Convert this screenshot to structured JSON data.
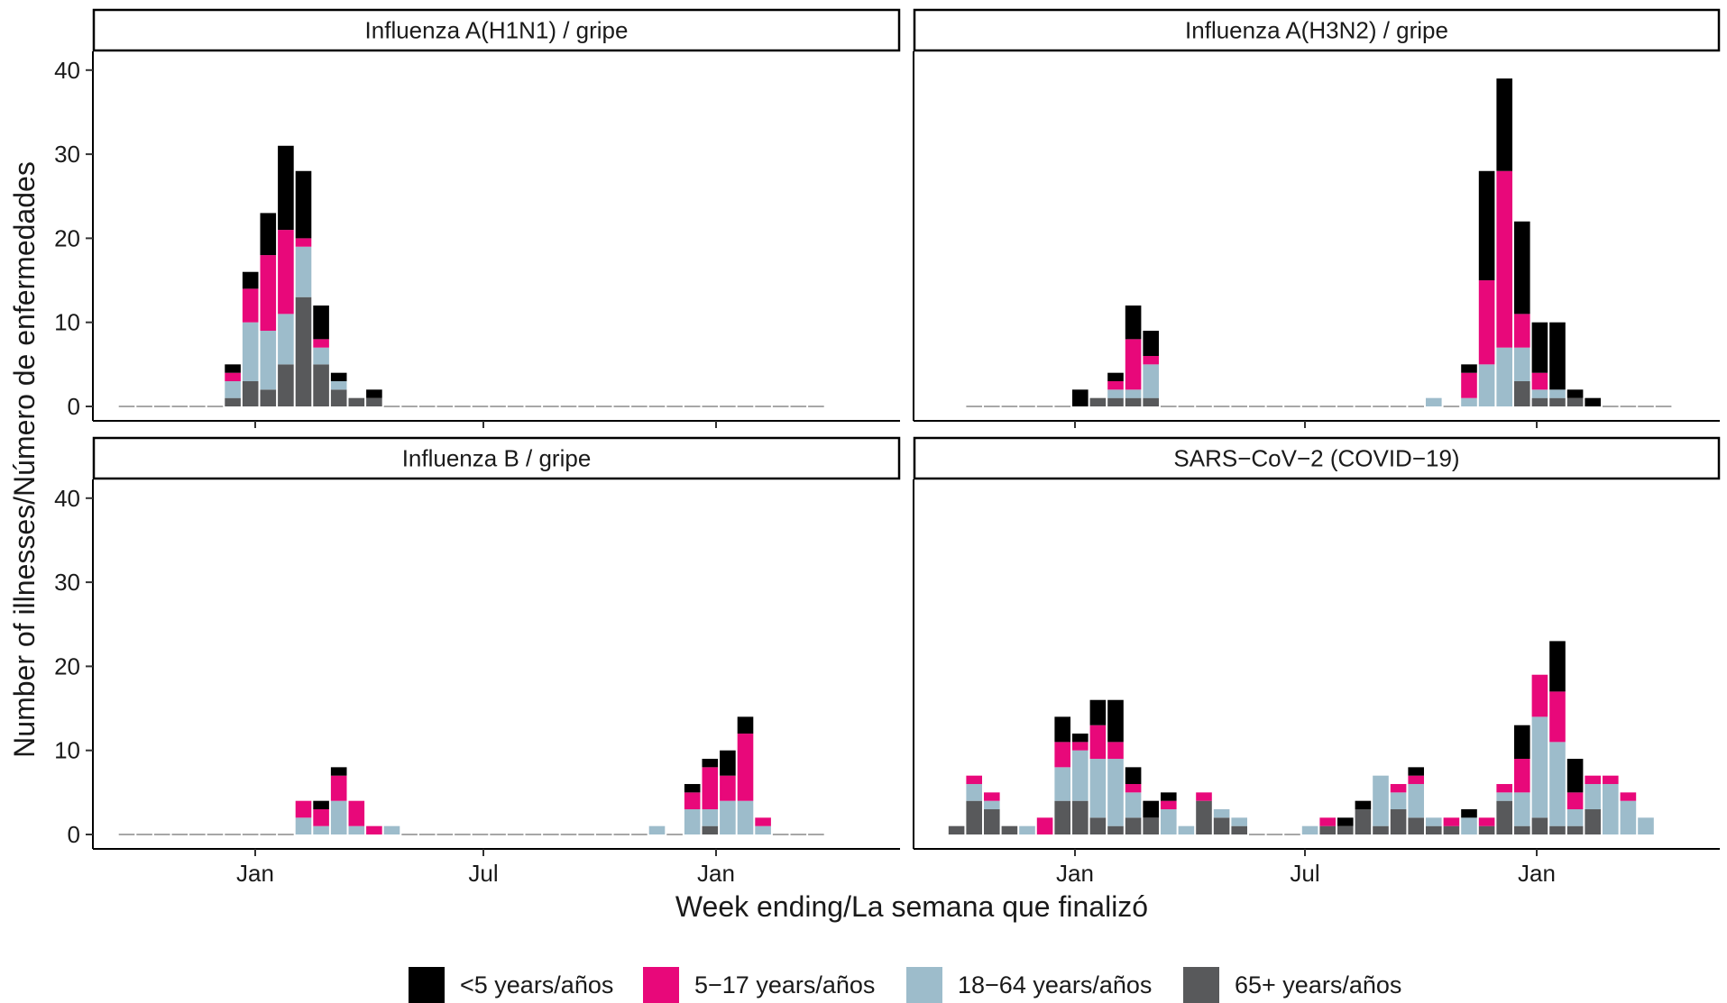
{
  "figure": {
    "ylabel": "Number of illnesses/Número de enfermedades",
    "xlabel": "Week ending/La semana que finalizó",
    "x_tick_labels": [
      "Jan",
      "Jul",
      "Jan"
    ],
    "y_tick_labels": [
      "0",
      "10",
      "20",
      "30",
      "40"
    ]
  },
  "legend": {
    "items": [
      {
        "label": "<5 years/años",
        "color": "#000000"
      },
      {
        "label": "5−17 years/años",
        "color": "#e8087a"
      },
      {
        "label": "18−64 years/años",
        "color": "#9dbccb"
      },
      {
        "label": "65+ years/años",
        "color": "#58595b"
      }
    ]
  },
  "chart_data": [
    {
      "type": "bar",
      "stacked": true,
      "title": "Influenza A(H1N1) / gripe",
      "ylim": [
        0,
        40
      ],
      "x_week_index": [
        2,
        3,
        4,
        5,
        6,
        7,
        8,
        9,
        10,
        11,
        12,
        13,
        14,
        15,
        16,
        17,
        18,
        19,
        20,
        21,
        22,
        23,
        24,
        25,
        26,
        27,
        28,
        29,
        30,
        31,
        32,
        33,
        34,
        35,
        36,
        37,
        38,
        39,
        40,
        41
      ],
      "series": [
        {
          "name": "65+ years/años",
          "values": [
            0,
            0,
            0,
            0,
            0,
            0,
            1,
            3,
            2,
            5,
            13,
            5,
            2,
            1,
            1,
            0,
            0,
            0,
            0,
            0,
            0,
            0,
            0,
            0,
            0,
            0,
            0,
            0,
            0,
            0,
            0,
            0,
            0,
            0,
            0,
            0,
            0,
            0,
            0,
            0
          ]
        },
        {
          "name": "18−64 years/años",
          "values": [
            0,
            0,
            0,
            0,
            0,
            0,
            2,
            7,
            7,
            6,
            6,
            2,
            1,
            0,
            0,
            0,
            0,
            0,
            0,
            0,
            0,
            0,
            0,
            0,
            0,
            0,
            0,
            0,
            0,
            0,
            0,
            0,
            0,
            0,
            0,
            0,
            0,
            0,
            0,
            0
          ]
        },
        {
          "name": "5−17 years/años",
          "values": [
            0,
            0,
            0,
            0,
            0,
            0,
            1,
            4,
            9,
            10,
            1,
            1,
            0,
            0,
            0,
            0,
            0,
            0,
            0,
            0,
            0,
            0,
            0,
            0,
            0,
            0,
            0,
            0,
            0,
            0,
            0,
            0,
            0,
            0,
            0,
            0,
            0,
            0,
            0,
            0
          ]
        },
        {
          "name": "<5 years/años",
          "values": [
            0,
            0,
            0,
            0,
            0,
            0,
            1,
            2,
            5,
            10,
            8,
            4,
            1,
            0,
            1,
            0,
            0,
            0,
            0,
            0,
            0,
            0,
            0,
            0,
            0,
            0,
            0,
            0,
            0,
            0,
            0,
            0,
            0,
            0,
            0,
            0,
            0,
            0,
            0,
            0
          ]
        }
      ]
    },
    {
      "type": "bar",
      "stacked": true,
      "title": "Influenza A(H3N2) / gripe",
      "ylim": [
        0,
        40
      ],
      "x_week_index": [
        2,
        3,
        4,
        5,
        6,
        7,
        8,
        9,
        10,
        11,
        12,
        13,
        14,
        15,
        16,
        17,
        18,
        19,
        20,
        21,
        22,
        23,
        24,
        25,
        26,
        27,
        28,
        29,
        30,
        31,
        32,
        33,
        34,
        35,
        36,
        37,
        38,
        39,
        40,
        41
      ],
      "series": [
        {
          "name": "65+ years/años",
          "values": [
            0,
            0,
            0,
            0,
            0,
            0,
            0,
            1,
            1,
            1,
            1,
            0,
            0,
            0,
            0,
            0,
            0,
            0,
            0,
            0,
            0,
            0,
            0,
            0,
            0,
            0,
            0,
            0,
            0,
            0,
            0,
            3,
            1,
            1,
            1,
            0,
            0,
            0,
            0,
            0
          ]
        },
        {
          "name": "18−64 years/años",
          "values": [
            0,
            0,
            0,
            0,
            0,
            0,
            0,
            0,
            1,
            1,
            4,
            0,
            0,
            0,
            0,
            0,
            0,
            0,
            0,
            0,
            0,
            0,
            0,
            0,
            0,
            0,
            1,
            0,
            1,
            5,
            7,
            4,
            1,
            1,
            0,
            0,
            0,
            0,
            0,
            0
          ]
        },
        {
          "name": "5−17 years/años",
          "values": [
            0,
            0,
            0,
            0,
            0,
            0,
            0,
            0,
            1,
            6,
            1,
            0,
            0,
            0,
            0,
            0,
            0,
            0,
            0,
            0,
            0,
            0,
            0,
            0,
            0,
            0,
            0,
            0,
            3,
            10,
            21,
            4,
            2,
            0,
            0,
            0,
            0,
            0,
            0,
            0
          ]
        },
        {
          "name": "<5 years/años",
          "values": [
            0,
            0,
            0,
            0,
            0,
            0,
            2,
            0,
            1,
            4,
            3,
            0,
            0,
            0,
            0,
            0,
            0,
            0,
            0,
            0,
            0,
            0,
            0,
            0,
            0,
            0,
            0,
            0,
            1,
            13,
            11,
            11,
            6,
            8,
            1,
            1,
            0,
            0,
            0,
            0
          ]
        }
      ]
    },
    {
      "type": "bar",
      "stacked": true,
      "title": "Influenza B / gripe",
      "ylim": [
        0,
        40
      ],
      "x_week_index": [
        2,
        3,
        4,
        5,
        6,
        7,
        8,
        9,
        10,
        11,
        12,
        13,
        14,
        15,
        16,
        17,
        18,
        19,
        20,
        21,
        22,
        23,
        24,
        25,
        26,
        27,
        28,
        29,
        30,
        31,
        32,
        33,
        34,
        35,
        36,
        37,
        38,
        39,
        40,
        41
      ],
      "series": [
        {
          "name": "65+ years/años",
          "values": [
            0,
            0,
            0,
            0,
            0,
            0,
            0,
            0,
            0,
            0,
            0,
            0,
            0,
            0,
            0,
            0,
            0,
            0,
            0,
            0,
            0,
            0,
            0,
            0,
            0,
            0,
            0,
            0,
            0,
            0,
            0,
            0,
            0,
            1,
            0,
            0,
            0,
            0,
            0,
            0
          ]
        },
        {
          "name": "18−64 years/años",
          "values": [
            0,
            0,
            0,
            0,
            0,
            0,
            0,
            0,
            0,
            0,
            2,
            1,
            4,
            1,
            0,
            1,
            0,
            0,
            0,
            0,
            0,
            0,
            0,
            0,
            0,
            0,
            0,
            0,
            0,
            0,
            1,
            0,
            3,
            2,
            4,
            4,
            1,
            0,
            0,
            0
          ]
        },
        {
          "name": "5−17 years/años",
          "values": [
            0,
            0,
            0,
            0,
            0,
            0,
            0,
            0,
            0,
            0,
            2,
            2,
            3,
            3,
            1,
            0,
            0,
            0,
            0,
            0,
            0,
            0,
            0,
            0,
            0,
            0,
            0,
            0,
            0,
            0,
            0,
            0,
            2,
            5,
            3,
            8,
            1,
            0,
            0,
            0
          ]
        },
        {
          "name": "<5 years/años",
          "values": [
            0,
            0,
            0,
            0,
            0,
            0,
            0,
            0,
            0,
            0,
            0,
            1,
            1,
            0,
            0,
            0,
            0,
            0,
            0,
            0,
            0,
            0,
            0,
            0,
            0,
            0,
            0,
            0,
            0,
            0,
            0,
            0,
            1,
            1,
            3,
            2,
            0,
            0,
            0,
            0
          ]
        }
      ]
    },
    {
      "type": "bar",
      "stacked": true,
      "title": "SARS−CoV−2 (COVID−19)",
      "ylim": [
        0,
        40
      ],
      "x_week_index": [
        1,
        2,
        3,
        4,
        5,
        6,
        7,
        8,
        9,
        10,
        11,
        12,
        13,
        14,
        15,
        16,
        17,
        18,
        19,
        20,
        21,
        22,
        23,
        24,
        25,
        26,
        27,
        28,
        29,
        30,
        31,
        32,
        33,
        34,
        35,
        36,
        37,
        38,
        39,
        40
      ],
      "series": [
        {
          "name": "65+ years/años",
          "values": [
            1,
            4,
            3,
            1,
            0,
            0,
            4,
            4,
            2,
            1,
            2,
            2,
            0,
            0,
            4,
            2,
            1,
            0,
            0,
            0,
            0,
            1,
            1,
            3,
            1,
            3,
            2,
            1,
            1,
            0,
            1,
            4,
            1,
            2,
            1,
            1,
            3,
            0,
            0,
            0
          ]
        },
        {
          "name": "18−64 years/años",
          "values": [
            0,
            2,
            1,
            0,
            1,
            0,
            4,
            6,
            7,
            8,
            3,
            0,
            3,
            1,
            0,
            1,
            1,
            0,
            0,
            0,
            1,
            0,
            0,
            0,
            6,
            2,
            4,
            1,
            0,
            2,
            0,
            1,
            4,
            12,
            10,
            2,
            3,
            6,
            4,
            2
          ]
        },
        {
          "name": "5−17 years/años",
          "values": [
            0,
            1,
            1,
            0,
            0,
            2,
            3,
            1,
            4,
            2,
            1,
            0,
            1,
            0,
            1,
            0,
            0,
            0,
            0,
            0,
            0,
            1,
            0,
            0,
            0,
            1,
            1,
            0,
            1,
            0,
            1,
            1,
            4,
            5,
            6,
            2,
            1,
            1,
            1,
            0
          ]
        },
        {
          "name": "<5 years/años",
          "values": [
            0,
            0,
            0,
            0,
            0,
            0,
            3,
            1,
            3,
            5,
            2,
            2,
            1,
            0,
            0,
            0,
            0,
            0,
            0,
            0,
            0,
            0,
            1,
            1,
            0,
            0,
            1,
            0,
            0,
            1,
            0,
            0,
            4,
            0,
            6,
            4,
            0,
            0,
            0,
            0
          ]
        }
      ]
    }
  ]
}
